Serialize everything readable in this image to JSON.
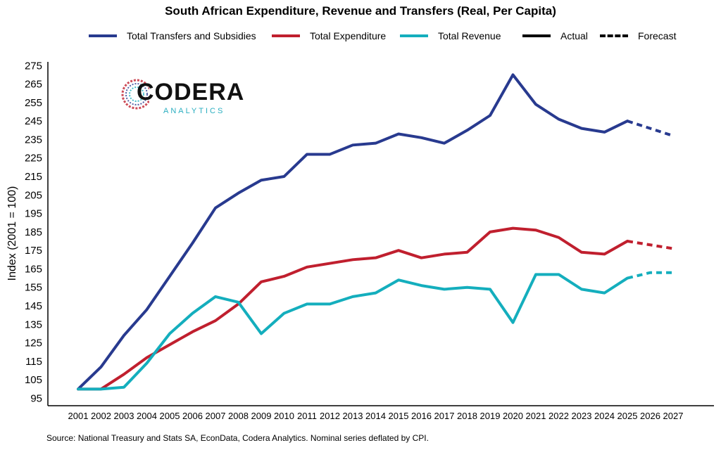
{
  "chart_data": {
    "type": "line",
    "title": "South African Expenditure, Revenue and Transfers (Real, Per Capita)",
    "xlabel": "",
    "ylabel": "Index (2001 = 100)",
    "source": "Source: National Treasury and Stats SA, EconData, Codera Analytics. Nominal series deflated by CPI.",
    "x": [
      2001,
      2002,
      2003,
      2004,
      2005,
      2006,
      2007,
      2008,
      2009,
      2010,
      2011,
      2012,
      2013,
      2014,
      2015,
      2016,
      2017,
      2018,
      2019,
      2020,
      2021,
      2022,
      2023,
      2024,
      2025,
      2026,
      2027
    ],
    "ylim": [
      91,
      277
    ],
    "yticks": [
      95,
      105,
      115,
      125,
      135,
      145,
      155,
      165,
      175,
      185,
      195,
      205,
      215,
      225,
      235,
      245,
      255,
      265,
      275
    ],
    "actual_end_year": 2025,
    "legend_placement": "top",
    "legend": {
      "styles": [
        {
          "name": "Actual",
          "style": "solid"
        },
        {
          "name": "Forecast",
          "style": "dashed"
        }
      ]
    },
    "series": [
      {
        "name": "Total Transfers and Subsidies",
        "color": "#283a8f",
        "values": [
          100,
          112,
          129,
          143,
          161,
          179,
          198,
          206,
          213,
          215,
          227,
          227,
          232,
          233,
          238,
          236,
          233,
          240,
          248,
          270,
          254,
          246,
          241,
          239,
          245,
          241,
          237
        ]
      },
      {
        "name": "Total Expenditure",
        "color": "#c01f2e",
        "values": [
          100,
          100,
          108,
          117,
          124,
          131,
          137,
          146,
          158,
          161,
          166,
          168,
          170,
          171,
          175,
          171,
          173,
          174,
          185,
          187,
          186,
          182,
          174,
          173,
          180,
          178,
          176
        ]
      },
      {
        "name": "Total Revenue",
        "color": "#14aebd",
        "values": [
          100,
          100,
          101,
          114,
          130,
          141,
          150,
          147,
          130,
          141,
          146,
          146,
          150,
          152,
          159,
          156,
          154,
          155,
          154,
          136,
          162,
          162,
          154,
          152,
          160,
          163,
          163
        ]
      }
    ]
  },
  "logo": {
    "word": "CODERA",
    "sub": "ANALYTICS"
  }
}
